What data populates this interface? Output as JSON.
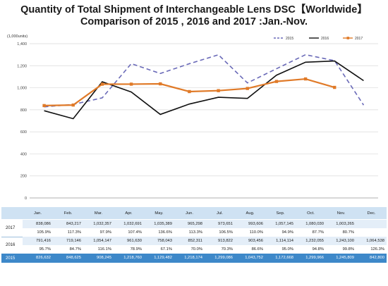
{
  "title_line1": "Quantity of Total Shipment of Interchangeable Lens DSC【Worldwide】",
  "title_line2": "Comparison of 2015 , 2016 and 2017 :Jan.-Nov.",
  "chart_data": {
    "type": "line",
    "units_label": "(1,000units)",
    "categories": [
      "Jan.",
      "Feb.",
      "Mar.",
      "Apr.",
      "May.",
      "Jun.",
      "Jul.",
      "Aug.",
      "Sep.",
      "Oct.",
      "Nov.",
      "Dec."
    ],
    "ylim": [
      0,
      1400
    ],
    "yticks": [
      "0",
      "200",
      "400",
      "600",
      "800",
      "1,000",
      "1,200",
      "1,400"
    ],
    "grid": true,
    "legend_position": "top-right",
    "series": [
      {
        "name": "2015",
        "color": "#6a6ab8",
        "dashed": true,
        "values": [
          826.6,
          848.6,
          908.2,
          1218.8,
          1129.5,
          1218.2,
          1299.1,
          1043.8,
          1172.7,
          1300.0,
          1245.8,
          842.8
        ]
      },
      {
        "name": "2016",
        "color": "#111111",
        "dashed": false,
        "values": [
          791.4,
          719.1,
          1054.1,
          961.6,
          758.0,
          852.3,
          913.8,
          903.5,
          1114.1,
          1232.1,
          1243.1,
          1064.5
        ]
      },
      {
        "name": "2017",
        "color": "#e07a28",
        "dashed": false,
        "values": [
          838.1,
          843.2,
          1032.4,
          1032.7,
          1035.4,
          965.3,
          973.7,
          993.6,
          1057.1,
          1080.0,
          1003.3,
          null
        ]
      }
    ]
  },
  "table": {
    "months": [
      "Jan.",
      "Feb.",
      "Mar.",
      "Apr.",
      "May.",
      "Jun.",
      "Jul.",
      "Aug.",
      "Sep.",
      "Oct.",
      "Nov.",
      "Dec."
    ],
    "rows": [
      {
        "year": "2017",
        "values": [
          "838,086",
          "843,217",
          "1,032,357",
          "1,032,691",
          "1,035,389",
          "965,298",
          "973,651",
          "993,606",
          "1,057,145",
          "1,080,030",
          "1,003,265",
          ""
        ],
        "ratios": [
          "105.9%",
          "117.3%",
          "97.9%",
          "107.4%",
          "136.6%",
          "113.3%",
          "106.5%",
          "110.0%",
          "94.9%",
          "87.7%",
          "80.7%",
          ""
        ]
      },
      {
        "year": "2016",
        "values": [
          "791,416",
          "719,146",
          "1,054,147",
          "961,630",
          "758,043",
          "852,311",
          "913,822",
          "903,456",
          "1,114,114",
          "1,232,055",
          "1,243,100",
          "1,064,538"
        ],
        "ratios": [
          "95.7%",
          "84.7%",
          "116.1%",
          "78.9%",
          "67.1%",
          "70.0%",
          "70.3%",
          "86.6%",
          "95.0%",
          "94.8%",
          "99.8%",
          "126.3%"
        ]
      },
      {
        "year": "2015",
        "values": [
          "826,632",
          "848,625",
          "908,245",
          "1,218,760",
          "1,129,482",
          "1,218,174",
          "1,299,086",
          "1,043,752",
          "1,172,668",
          "1,299,966",
          "1,245,809",
          "842,800"
        ]
      }
    ]
  }
}
